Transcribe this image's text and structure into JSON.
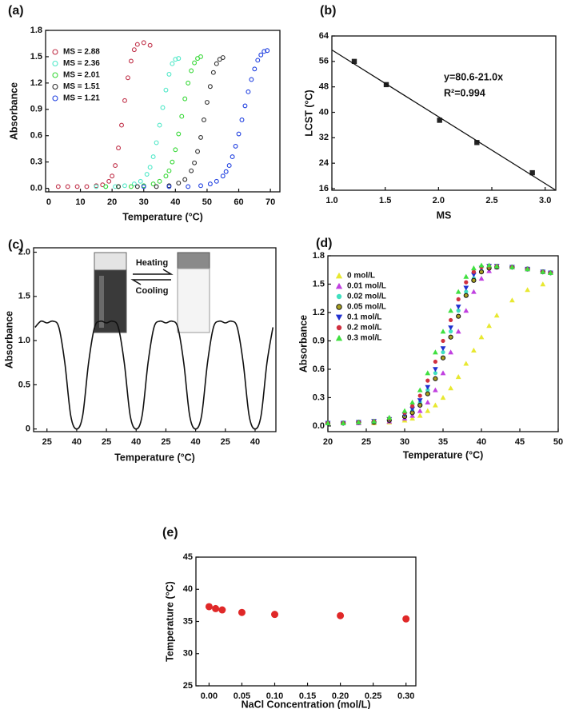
{
  "chart_data": [
    {
      "type": "scatter",
      "panel_label": "(a)",
      "xlabel": "Temperature (°C)",
      "ylabel": "Absorbance",
      "xlim": [
        -1,
        73
      ],
      "xticks": [
        0,
        10,
        20,
        30,
        40,
        50,
        60,
        70
      ],
      "ylim": [
        -0.04,
        1.8
      ],
      "yticks": [
        {
          "value": 0,
          "label": "0.0"
        },
        0.3,
        0.6,
        0.9,
        1.2,
        1.5,
        1.8
      ],
      "legend": "upper left",
      "series": [
        {
          "name": "MS = 2.88",
          "color": "#c03048",
          "marker": "circle-open",
          "x": [
            3,
            6,
            9,
            12,
            15,
            17,
            19,
            20,
            21,
            22,
            23,
            24,
            25,
            26,
            27,
            28,
            30,
            32
          ],
          "values": [
            0.02,
            0.02,
            0.02,
            0.02,
            0.03,
            0.04,
            0.08,
            0.14,
            0.26,
            0.46,
            0.72,
            1.0,
            1.26,
            1.45,
            1.58,
            1.64,
            1.66,
            1.63
          ]
        },
        {
          "name": "MS = 2.36",
          "color": "#50e8c8",
          "marker": "circle-open",
          "x": [
            15,
            18,
            21,
            24,
            27,
            29,
            31,
            32,
            33,
            34,
            35,
            36,
            37,
            38,
            39,
            40,
            41
          ],
          "values": [
            0.02,
            0.02,
            0.02,
            0.03,
            0.05,
            0.08,
            0.16,
            0.24,
            0.36,
            0.52,
            0.72,
            0.92,
            1.12,
            1.3,
            1.42,
            1.47,
            1.48
          ]
        },
        {
          "name": "MS = 2.01",
          "color": "#38d838",
          "marker": "circle-open",
          "x": [
            18,
            22,
            26,
            30,
            33,
            35,
            37,
            38,
            39,
            40,
            41,
            42,
            43,
            44,
            45,
            46,
            47,
            48
          ],
          "values": [
            0.02,
            0.02,
            0.02,
            0.03,
            0.05,
            0.08,
            0.14,
            0.2,
            0.3,
            0.44,
            0.62,
            0.82,
            1.02,
            1.2,
            1.34,
            1.43,
            1.48,
            1.5
          ]
        },
        {
          "name": "MS = 1.51",
          "color": "#303030",
          "marker": "circle-open",
          "x": [
            22,
            28,
            34,
            38,
            41,
            43,
            45,
            46,
            47,
            48,
            49,
            50,
            51,
            52,
            53,
            54,
            55
          ],
          "values": [
            0.02,
            0.02,
            0.02,
            0.03,
            0.06,
            0.1,
            0.2,
            0.29,
            0.42,
            0.58,
            0.78,
            0.98,
            1.16,
            1.32,
            1.42,
            1.47,
            1.49
          ]
        },
        {
          "name": "MS = 1.21",
          "color": "#2040e0",
          "marker": "circle-open",
          "x": [
            30,
            38,
            44,
            48,
            51,
            53,
            55,
            56,
            57,
            58,
            59,
            60,
            61,
            62,
            63,
            64,
            65,
            66,
            67,
            68,
            69
          ],
          "values": [
            0.02,
            0.02,
            0.02,
            0.03,
            0.05,
            0.08,
            0.14,
            0.19,
            0.26,
            0.36,
            0.48,
            0.62,
            0.78,
            0.94,
            1.1,
            1.24,
            1.36,
            1.46,
            1.52,
            1.56,
            1.57
          ]
        }
      ]
    },
    {
      "type": "scatter",
      "panel_label": "(b)",
      "xlabel": "MS",
      "ylabel": "LCST (°C)",
      "xlim": [
        1.0,
        3.1
      ],
      "xticks": [
        {
          "value": 1,
          "label": "1.0"
        },
        1.5,
        {
          "value": 2,
          "label": "2.0"
        },
        2.5,
        {
          "value": 3,
          "label": "3.0"
        }
      ],
      "ylim": [
        15.5,
        64
      ],
      "yticks": [
        16,
        24,
        32,
        40,
        48,
        56,
        64
      ],
      "x": [
        1.21,
        1.51,
        2.01,
        2.36,
        2.88
      ],
      "values": [
        56,
        48.7,
        37.5,
        30.5,
        21
      ],
      "color": "#222222",
      "marker": "square",
      "fit": {
        "intercept": 80.6,
        "slope": -21.0
      },
      "annotations": [
        "y=80.6-21.0x",
        "R²=0.994"
      ]
    },
    {
      "type": "line",
      "panel_label": "(c)",
      "xlabel": "Temperature (°C)",
      "ylabel": "Absorbance",
      "xlim": [
        -0.45,
        7.7
      ],
      "xticks": [
        {
          "value": 0,
          "label": "25"
        },
        {
          "value": 1,
          "label": "40"
        },
        {
          "value": 2,
          "label": "25"
        },
        {
          "value": 3,
          "label": "40"
        },
        {
          "value": 4,
          "label": "25"
        },
        {
          "value": 5,
          "label": "40"
        },
        {
          "value": 6,
          "label": "25"
        },
        {
          "value": 7,
          "label": "40"
        }
      ],
      "ylim": [
        -0.03,
        2.05
      ],
      "yticks": [
        0,
        0.5,
        {
          "value": 1,
          "label": "1.0"
        },
        1.5,
        {
          "value": 2,
          "label": "2.0"
        }
      ],
      "color": "#111111",
      "inset_labels": [
        "Heating",
        "Cooling"
      ],
      "x": [
        -0.4,
        -0.2,
        0,
        0.2,
        0.4,
        0.6,
        0.8,
        1,
        1.2,
        1.4,
        1.6,
        1.8,
        2,
        2.2,
        2.4,
        2.6,
        2.8,
        3,
        3.2,
        3.4,
        3.6,
        3.8,
        4,
        4.2,
        4.4,
        4.6,
        4.8,
        5,
        5.2,
        5.4,
        5.6,
        5.8,
        6,
        6.2,
        6.4,
        6.6,
        6.8,
        7,
        7.2,
        7.4,
        7.6
      ],
      "values": [
        1.15,
        1.22,
        1.2,
        1.22,
        1.15,
        0.75,
        0.15,
        0,
        0.15,
        0.75,
        1.15,
        1.22,
        1.2,
        1.22,
        1.15,
        0.75,
        0.15,
        0,
        0.15,
        0.75,
        1.15,
        1.22,
        1.2,
        1.22,
        1.15,
        0.75,
        0.15,
        0,
        0.15,
        0.75,
        1.15,
        1.22,
        1.2,
        1.22,
        1.15,
        0.75,
        0.15,
        0,
        0.15,
        0.75,
        1.15
      ]
    },
    {
      "type": "scatter",
      "panel_label": "(d)",
      "xlabel": "Temperature (°C)",
      "ylabel": "Absorbance",
      "xlim": [
        20,
        50
      ],
      "xticks": [
        20,
        25,
        30,
        35,
        40,
        45,
        50
      ],
      "ylim": [
        -0.06,
        1.8
      ],
      "yticks": [
        {
          "value": 0,
          "label": "0.0"
        },
        0.3,
        0.6,
        0.9,
        1.2,
        1.5,
        1.8
      ],
      "legend": "upper left",
      "x": [
        20,
        22,
        24,
        26,
        28,
        30,
        31,
        32,
        33,
        34,
        35,
        36,
        37,
        38,
        39,
        40,
        41,
        42,
        44,
        46,
        48,
        49
      ],
      "series": [
        {
          "name": "0 mol/L",
          "color": "#e8e830",
          "marker": "triangle",
          "values": [
            0.03,
            0.03,
            0.03,
            0.03,
            0.04,
            0.06,
            0.08,
            0.11,
            0.16,
            0.22,
            0.3,
            0.4,
            0.52,
            0.66,
            0.8,
            0.94,
            1.06,
            1.17,
            1.33,
            1.44,
            1.5,
            null
          ]
        },
        {
          "name": "0.01 mol/L",
          "color": "#c040e0",
          "marker": "triangle",
          "values": [
            0.03,
            0.03,
            0.03,
            0.04,
            0.05,
            0.08,
            0.11,
            0.16,
            0.25,
            0.38,
            0.56,
            0.78,
            1.0,
            1.22,
            1.42,
            1.56,
            1.64,
            1.68,
            1.68,
            1.66,
            1.63,
            1.62
          ]
        },
        {
          "name": "0.02 mol/L",
          "color": "#40e0c0",
          "marker": "circle",
          "values": [
            0.03,
            0.03,
            0.04,
            0.04,
            0.06,
            0.11,
            0.16,
            0.25,
            0.38,
            0.56,
            0.78,
            1.0,
            1.22,
            1.42,
            1.56,
            1.64,
            1.68,
            1.69,
            1.68,
            1.66,
            1.63,
            1.62
          ]
        },
        {
          "name": "0.05 mol/L",
          "color": "#a8a020",
          "marker": "ring",
          "values": [
            0.03,
            0.03,
            0.04,
            0.04,
            0.06,
            0.1,
            0.14,
            0.22,
            0.34,
            0.5,
            0.72,
            0.94,
            1.16,
            1.38,
            1.54,
            1.63,
            1.67,
            1.68,
            1.68,
            1.66,
            1.63,
            1.62
          ]
        },
        {
          "name": "0.1 mol/L",
          "color": "#2030d0",
          "marker": "triangle-down",
          "values": [
            0.03,
            0.03,
            0.04,
            0.05,
            0.07,
            0.12,
            0.18,
            0.27,
            0.41,
            0.6,
            0.82,
            1.04,
            1.26,
            1.46,
            1.6,
            1.67,
            1.69,
            1.69,
            1.68,
            1.66,
            1.63,
            1.62
          ]
        },
        {
          "name": "0.2 mol/L",
          "color": "#d03040",
          "marker": "circle",
          "values": [
            0.03,
            0.03,
            0.04,
            0.05,
            0.08,
            0.14,
            0.21,
            0.32,
            0.48,
            0.68,
            0.9,
            1.12,
            1.34,
            1.52,
            1.63,
            1.68,
            1.69,
            1.69,
            1.68,
            1.66,
            1.63,
            1.62
          ]
        },
        {
          "name": "0.3 mol/L",
          "color": "#40e040",
          "marker": "triangle",
          "values": [
            0.03,
            0.03,
            0.04,
            0.05,
            0.09,
            0.16,
            0.25,
            0.38,
            0.56,
            0.78,
            1.0,
            1.22,
            1.42,
            1.58,
            1.67,
            1.7,
            1.7,
            1.69,
            1.68,
            1.66,
            1.63,
            1.62
          ]
        }
      ]
    },
    {
      "type": "scatter",
      "panel_label": "(e)",
      "xlabel": "NaCl Concentration (mol/L)",
      "ylabel": "Temperature (°C)",
      "xlim": [
        -0.02,
        0.315
      ],
      "xticks": [
        {
          "value": 0,
          "label": "0.00"
        },
        0.05,
        {
          "value": 0.1,
          "label": "0.10"
        },
        0.15,
        {
          "value": 0.2,
          "label": "0.20"
        },
        0.25,
        {
          "value": 0.3,
          "label": "0.30"
        }
      ],
      "ylim": [
        25,
        45
      ],
      "yticks": [
        25,
        30,
        35,
        40,
        45
      ],
      "x": [
        0,
        0.01,
        0.02,
        0.05,
        0.1,
        0.2,
        0.3
      ],
      "values": [
        37.3,
        37.0,
        36.8,
        36.4,
        36.1,
        35.9,
        35.4
      ],
      "color": "#e02828",
      "marker": "circle"
    }
  ]
}
